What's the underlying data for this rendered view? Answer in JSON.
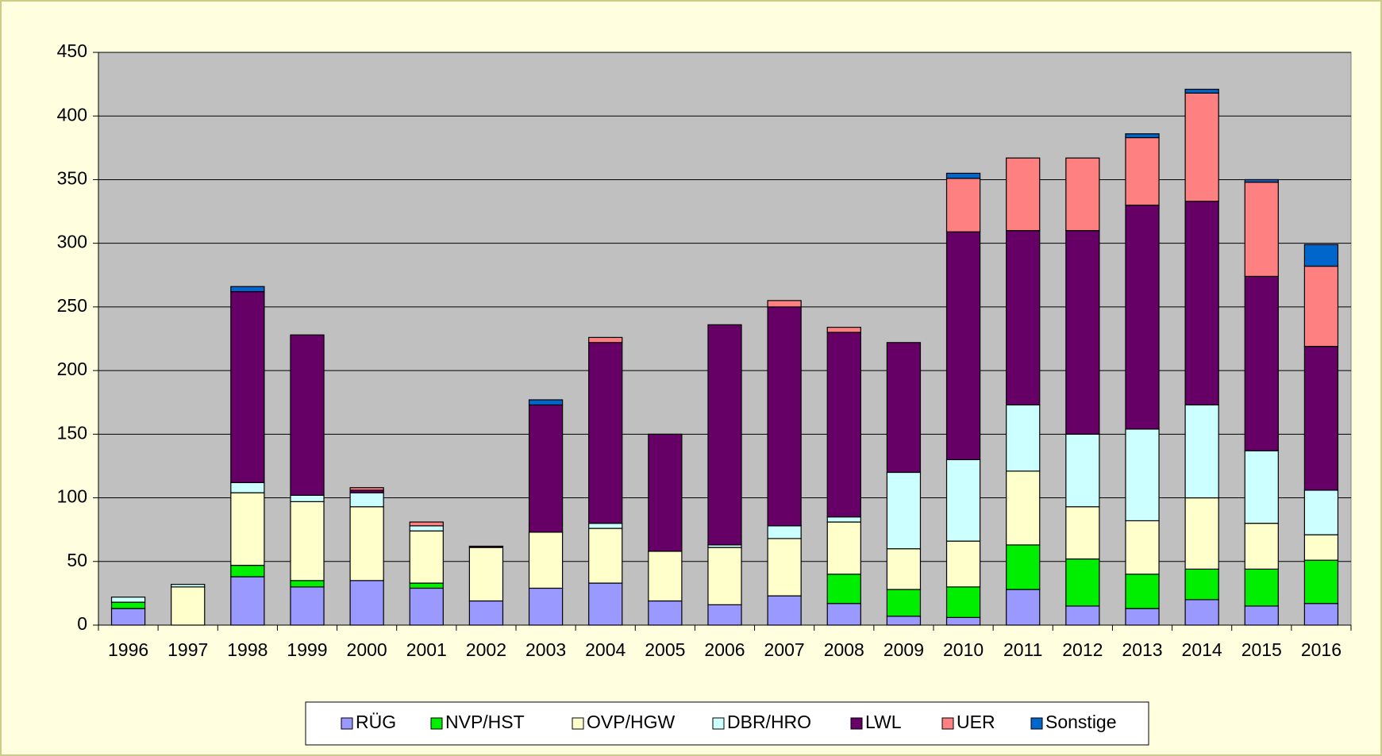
{
  "chart_data": {
    "type": "stacked_bar",
    "categories": [
      "1996",
      "1997",
      "1998",
      "1999",
      "2000",
      "2001",
      "2002",
      "2003",
      "2004",
      "2005",
      "2006",
      "2007",
      "2008",
      "2009",
      "2010",
      "2011",
      "2012",
      "2013",
      "2014",
      "2015",
      "2016"
    ],
    "series": [
      {
        "name": "RÜG",
        "color": "#9999ff",
        "values": [
          13,
          0,
          38,
          30,
          35,
          29,
          19,
          29,
          33,
          19,
          16,
          23,
          17,
          7,
          6,
          28,
          15,
          13,
          20,
          15,
          17
        ]
      },
      {
        "name": "NVP/HST",
        "color": "#00ee00",
        "values": [
          5,
          0,
          9,
          5,
          0,
          4,
          0,
          0,
          0,
          0,
          0,
          0,
          23,
          21,
          24,
          35,
          37,
          27,
          24,
          29,
          34
        ]
      },
      {
        "name": "OVP/HGW",
        "color": "#ffffcc",
        "values": [
          0,
          30,
          57,
          62,
          58,
          41,
          42,
          44,
          43,
          39,
          45,
          45,
          41,
          32,
          36,
          58,
          41,
          42,
          56,
          36,
          20
        ]
      },
      {
        "name": "DBR/HRO",
        "color": "#ccffff",
        "values": [
          4,
          2,
          8,
          5,
          11,
          4,
          0,
          0,
          4,
          0,
          2,
          10,
          4,
          60,
          64,
          52,
          57,
          72,
          73,
          57,
          35
        ]
      },
      {
        "name": "LWL",
        "color": "#660066",
        "values": [
          0,
          0,
          150,
          126,
          2,
          0,
          1,
          100,
          142,
          92,
          173,
          172,
          145,
          102,
          179,
          137,
          160,
          176,
          160,
          137,
          113
        ]
      },
      {
        "name": "UER",
        "color": "#ff8080",
        "values": [
          0,
          0,
          0,
          0,
          2,
          3,
          0,
          0,
          4,
          0,
          0,
          5,
          4,
          0,
          42,
          57,
          57,
          53,
          85,
          74,
          63
        ]
      },
      {
        "name": "Sonstige",
        "color": "#0066cc",
        "values": [
          0,
          0,
          4,
          0,
          0,
          0,
          0,
          4,
          0,
          0,
          0,
          0,
          0,
          0,
          4,
          0,
          0,
          3,
          3,
          2,
          17
        ]
      }
    ],
    "ylim": [
      0,
      450
    ],
    "yticks": [
      0,
      50,
      100,
      150,
      200,
      250,
      300,
      350,
      400,
      450
    ],
    "grid": true,
    "legend": "bottom"
  }
}
